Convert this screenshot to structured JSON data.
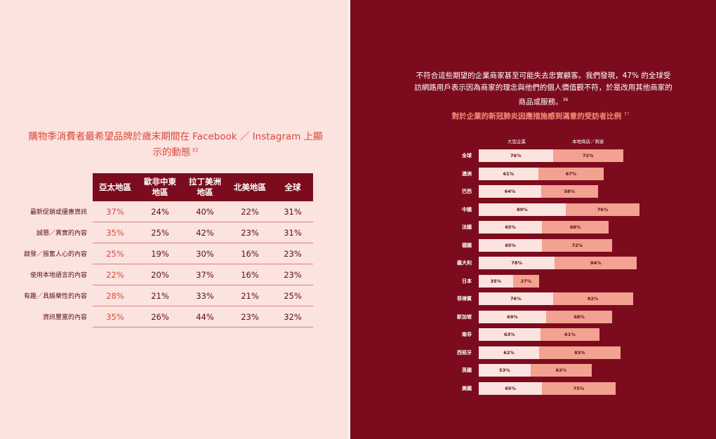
{
  "left": {
    "title": "購物季消費者最希望品牌於歲末期間在 Facebook ／ Instagram 上顯示的動態",
    "title_note": "32",
    "columns": [
      "亞太地區",
      "歐非中東\n地區",
      "拉丁美洲\n地區",
      "北美地區",
      "全球"
    ],
    "rows": [
      {
        "label": "最新促銷或優惠資訊",
        "values": [
          "37%",
          "24%",
          "40%",
          "22%",
          "31%"
        ]
      },
      {
        "label": "誠懇／真實的內容",
        "values": [
          "35%",
          "25%",
          "42%",
          "23%",
          "31%"
        ]
      },
      {
        "label": "啟發／振奮人心的內容",
        "values": [
          "25%",
          "19%",
          "30%",
          "16%",
          "23%"
        ]
      },
      {
        "label": "使用本地語言的內容",
        "values": [
          "22%",
          "20%",
          "37%",
          "16%",
          "23%"
        ]
      },
      {
        "label": "有趣／具娛樂性的內容",
        "values": [
          "28%",
          "21%",
          "33%",
          "21%",
          "25%"
        ]
      },
      {
        "label": "資訊豐富的內容",
        "values": [
          "35%",
          "26%",
          "44%",
          "23%",
          "32%"
        ]
      }
    ]
  },
  "right": {
    "paragraph": "不符合這些期望的企業商家甚至可能失去忠實顧客。我們發現，47% 的全球受訪網路用戶表示因為商家的理念與他們的個人價值觀不符，於是改用其他商家的商品或服務。",
    "paragraph_note": "36",
    "chart_title": "對於企業的新冠肺炎因應措施感到滿意的受訪者比例",
    "chart_title_note": "37"
  },
  "chart_data": {
    "type": "bar",
    "stacked": true,
    "orientation": "horizontal",
    "title": "對於企業的新冠肺炎因應措施感到滿意的受訪者比例",
    "categories": [
      "全球",
      "澳洲",
      "巴西",
      "中國",
      "法國",
      "德國",
      "義大利",
      "日本",
      "菲律賓",
      "新加坡",
      "南非",
      "西班牙",
      "英國",
      "美國"
    ],
    "series": [
      {
        "name": "大型企業",
        "color": "#fbe3df",
        "values": [
          76,
          61,
          64,
          89,
          65,
          65,
          78,
          35,
          76,
          69,
          63,
          62,
          53,
          65
        ]
      },
      {
        "name": "本地商店／商家",
        "color": "#f3a191",
        "values": [
          72,
          67,
          58,
          76,
          68,
          72,
          84,
          27,
          82,
          68,
          61,
          83,
          63,
          75
        ]
      }
    ],
    "unit": "%"
  }
}
